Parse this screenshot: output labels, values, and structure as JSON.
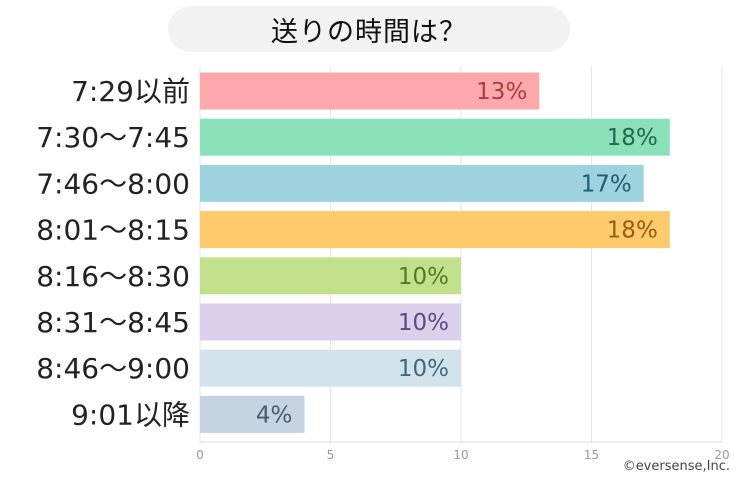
{
  "title": "送りの時間は？",
  "credit": "©eversense,Inc.",
  "chart_data": {
    "type": "bar",
    "orientation": "horizontal",
    "title": "送りの時間は？",
    "categories": [
      "7:29以前",
      "7:30～7:45",
      "7:46～8:00",
      "8:01～8:15",
      "8:16～8:30",
      "8:31～8:45",
      "8:46～9:00",
      "9:01以降"
    ],
    "values": [
      13,
      18,
      17,
      18,
      10,
      10,
      10,
      4
    ],
    "value_labels": [
      "13%",
      "18%",
      "17%",
      "18%",
      "10%",
      "10%",
      "10%",
      "4%"
    ],
    "bar_colors": [
      "#fda9ab",
      "#8ae0b8",
      "#9ed2de",
      "#fdca6c",
      "#c2e08c",
      "#dad0ec",
      "#d3e3eb",
      "#c4d4e2"
    ],
    "label_colors": [
      "#b03a40",
      "#1d6b48",
      "#1c5f73",
      "#9a5a10",
      "#4f7d1d",
      "#5a4a80",
      "#3d6a80",
      "#4a5a70"
    ],
    "xlim": [
      0,
      20
    ],
    "xticks": [
      "0",
      "5",
      "10",
      "15",
      "20"
    ],
    "grid": true,
    "legend": "none"
  }
}
